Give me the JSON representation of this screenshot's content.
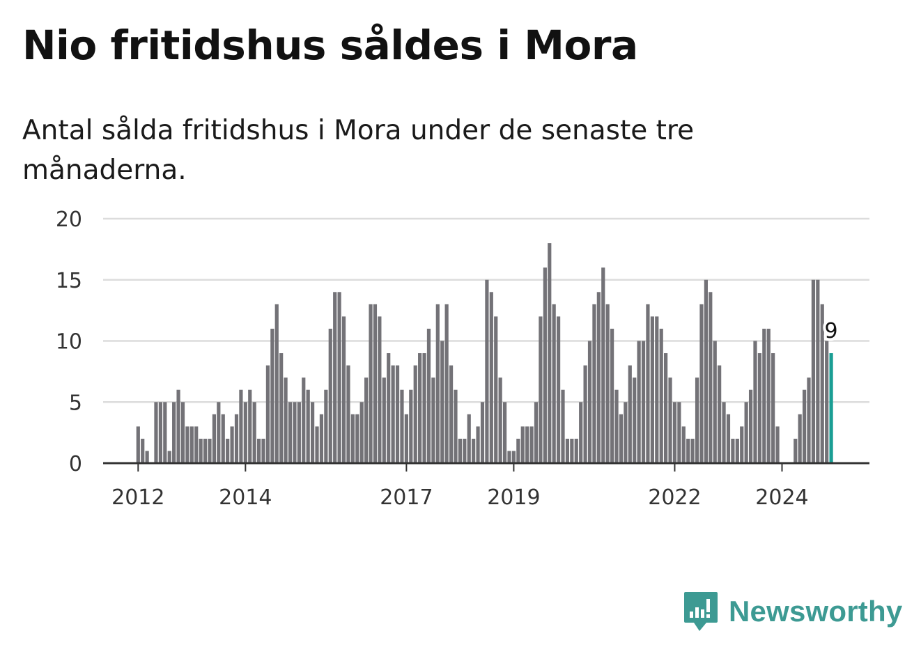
{
  "title": "Nio fritidshus såldes i Mora",
  "subtitle": "Antal sålda fritidshus i Mora under de senaste tre månaderna.",
  "brand": {
    "name": "Newsworthy",
    "color": "#3d9a93",
    "icon": "newsworthy-logo-icon"
  },
  "colors": {
    "bar": "#737277",
    "highlight": "#1a9e94",
    "grid": "#dcdcdc",
    "axis": "#333333"
  },
  "chart_data": {
    "type": "bar",
    "x_start": "2012-01",
    "x_step": "month",
    "values": [
      3,
      2,
      1,
      0,
      5,
      5,
      5,
      1,
      5,
      6,
      5,
      3,
      3,
      3,
      2,
      2,
      2,
      4,
      5,
      4,
      2,
      3,
      4,
      6,
      5,
      6,
      5,
      2,
      2,
      8,
      11,
      13,
      9,
      7,
      5,
      5,
      5,
      7,
      6,
      5,
      3,
      4,
      6,
      11,
      14,
      14,
      12,
      8,
      4,
      4,
      5,
      7,
      13,
      13,
      12,
      7,
      9,
      8,
      8,
      6,
      4,
      6,
      8,
      9,
      9,
      11,
      7,
      13,
      10,
      13,
      8,
      6,
      2,
      2,
      4,
      2,
      3,
      5,
      15,
      14,
      12,
      7,
      5,
      1,
      1,
      2,
      3,
      3,
      3,
      5,
      12,
      16,
      18,
      13,
      12,
      6,
      2,
      2,
      2,
      5,
      8,
      10,
      13,
      14,
      16,
      13,
      11,
      6,
      4,
      5,
      8,
      7,
      10,
      10,
      13,
      12,
      12,
      11,
      9,
      7,
      5,
      5,
      3,
      2,
      2,
      7,
      13,
      15,
      14,
      10,
      8,
      5,
      4,
      2,
      2,
      3,
      5,
      6,
      10,
      9,
      11,
      11,
      9,
      3,
      0,
      0,
      0,
      2,
      4,
      6,
      7,
      15,
      15,
      13,
      10,
      9
    ],
    "highlight_last": true,
    "highlight_label": "9",
    "x_ticks": [
      "2012",
      "2014",
      "2017",
      "2019",
      "2022",
      "2024"
    ],
    "x_tick_months": [
      "2012-01",
      "2014-01",
      "2017-01",
      "2019-01",
      "2022-01",
      "2024-01"
    ],
    "y_ticks": [
      0,
      5,
      10,
      15,
      20
    ],
    "ylim": [
      0,
      20
    ],
    "grid": true,
    "legend": "none"
  }
}
